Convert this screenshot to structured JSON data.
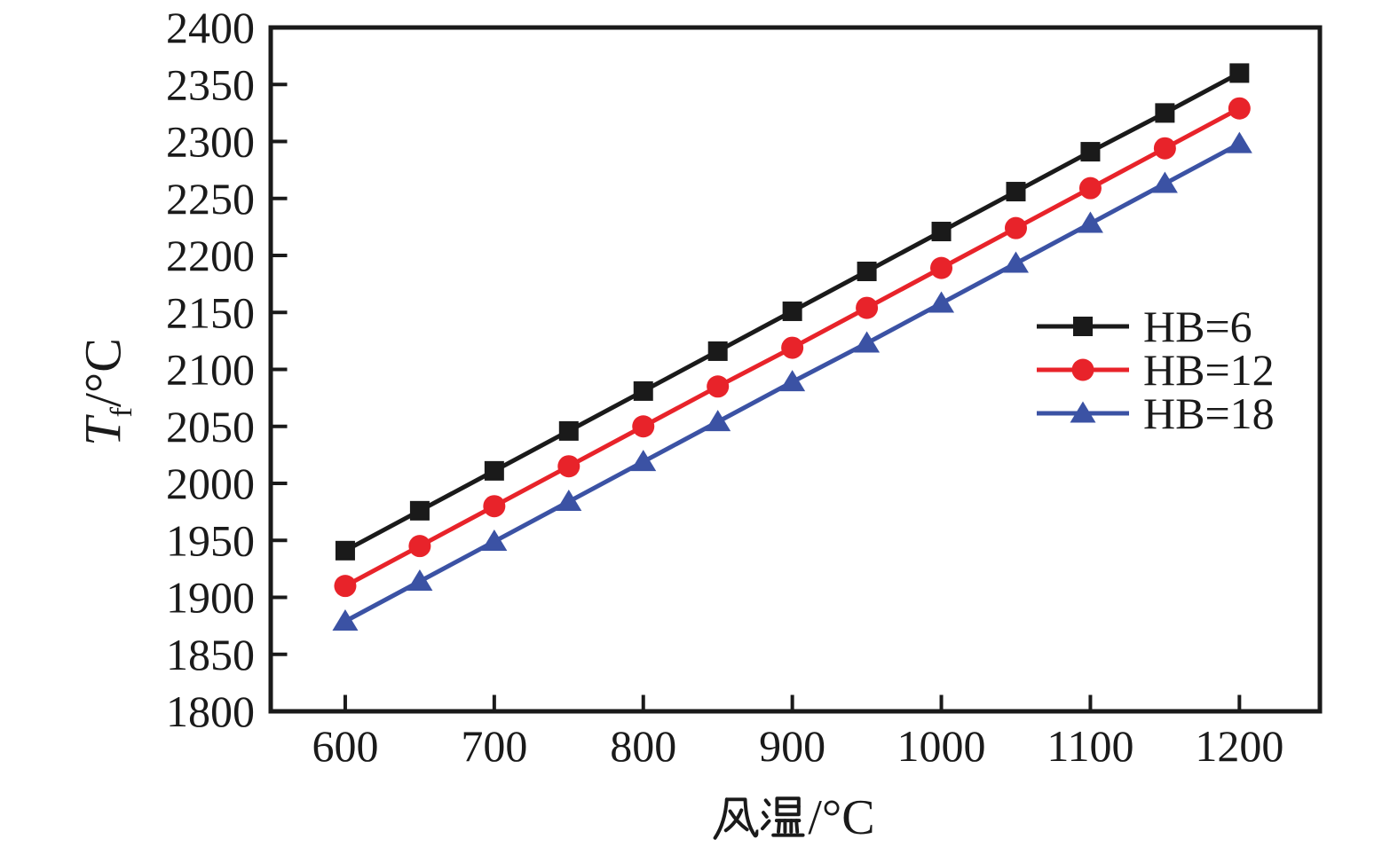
{
  "background": "#ffffff",
  "frame_color": "#1a1a1a",
  "chart_data": {
    "type": "line",
    "x": [
      600,
      650,
      700,
      750,
      800,
      850,
      900,
      950,
      1000,
      1050,
      1100,
      1150,
      1200
    ],
    "series": [
      {
        "name": "HB=6",
        "color": "#1a1a1a",
        "marker": "square",
        "values": [
          1941,
          1976,
          2011,
          2046,
          2081,
          2116,
          2151,
          2186,
          2221,
          2256,
          2291,
          2325,
          2360
        ]
      },
      {
        "name": "HB=12",
        "color": "#e8232a",
        "marker": "circle",
        "values": [
          1910,
          1945,
          1980,
          2015,
          2050,
          2085,
          2119,
          2154,
          2189,
          2224,
          2259,
          2294,
          2329
        ]
      },
      {
        "name": "HB=18",
        "color": "#3b52a4",
        "marker": "triangle-up",
        "values": [
          1879,
          1914,
          1949,
          1984,
          2019,
          2054,
          2089,
          2123,
          2158,
          2193,
          2228,
          2263,
          2298
        ]
      }
    ],
    "title": "",
    "xlabel": {
      "text": "风温/°C",
      "cjk": "风温",
      "unit": "/°C"
    },
    "ylabel": {
      "text": "Tf/°C",
      "var": "T",
      "sub": "f",
      "unit": "/°C"
    },
    "xlim": [
      550,
      1254
    ],
    "ylim": [
      1800,
      2400
    ],
    "xticks": [
      600,
      700,
      800,
      900,
      1000,
      1100,
      1200
    ],
    "yticks": [
      1800,
      1850,
      1900,
      1950,
      2000,
      2050,
      2100,
      2150,
      2200,
      2250,
      2300,
      2350,
      2400
    ],
    "grid": false,
    "legend": {
      "position": "right-middle",
      "entries": [
        "HB=6",
        "HB=12",
        "HB=18"
      ]
    }
  }
}
